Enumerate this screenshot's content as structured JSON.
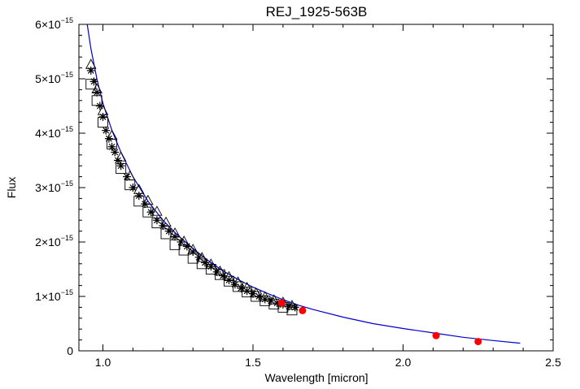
{
  "chart_data": {
    "type": "scatter",
    "title": "REJ_1925-563B",
    "xlabel": "Wavelength [micron]",
    "ylabel": "Flux",
    "xlim": [
      0.92,
      2.5
    ],
    "ylim": [
      0,
      6e-15
    ],
    "x_ticks": [
      {
        "value": 1.0,
        "label": "1.0"
      },
      {
        "value": 1.5,
        "label": "1.5"
      },
      {
        "value": 2.0,
        "label": "2.0"
      },
      {
        "value": 2.5,
        "label": "2.5"
      }
    ],
    "y_ticks": [
      {
        "value": 0,
        "mantissa": "0",
        "exponent": ""
      },
      {
        "value": 1e-15,
        "mantissa": "1×10",
        "exponent": "−15"
      },
      {
        "value": 2e-15,
        "mantissa": "2×10",
        "exponent": "−15"
      },
      {
        "value": 3e-15,
        "mantissa": "3×10",
        "exponent": "−15"
      },
      {
        "value": 4e-15,
        "mantissa": "4×10",
        "exponent": "−15"
      },
      {
        "value": 5e-15,
        "mantissa": "5×10",
        "exponent": "−15"
      },
      {
        "value": 6e-15,
        "mantissa": "6×10",
        "exponent": "−15"
      }
    ],
    "grid": false,
    "series": [
      {
        "marker": "asterisk",
        "color": "#000000",
        "x": [
          0.96,
          0.97,
          0.98,
          0.99,
          1.0,
          1.01,
          1.02,
          1.03,
          1.04,
          1.05,
          1.06,
          1.08,
          1.1,
          1.12,
          1.14,
          1.16,
          1.18,
          1.2,
          1.22,
          1.24,
          1.26,
          1.28,
          1.3,
          1.32,
          1.34,
          1.36,
          1.38,
          1.4,
          1.42,
          1.44,
          1.46,
          1.48,
          1.5,
          1.52,
          1.54,
          1.56,
          1.58,
          1.6,
          1.62,
          1.64
        ],
        "y": [
          5.15e-15,
          4.95e-15,
          4.75e-15,
          4.5e-15,
          4.3e-15,
          4.05e-15,
          3.9e-15,
          3.75e-15,
          3.65e-15,
          3.5e-15,
          3.4e-15,
          3.2e-15,
          3e-15,
          2.85e-15,
          2.7e-15,
          2.55e-15,
          2.4e-15,
          2.3e-15,
          2.2e-15,
          2.1e-15,
          2e-15,
          1.92e-15,
          1.82e-15,
          1.72e-15,
          1.62e-15,
          1.55e-15,
          1.45e-15,
          1.38e-15,
          1.3e-15,
          1.22e-15,
          1.15e-15,
          1.1e-15,
          1.05e-15,
          1e-15,
          9.5e-16,
          9.2e-16,
          8.8e-16,
          8.5e-16,
          8.2e-16,
          8e-16
        ]
      },
      {
        "marker": "square",
        "color": "#000000",
        "x": [
          0.96,
          0.98,
          1.0,
          1.03,
          1.06,
          1.09,
          1.12,
          1.15,
          1.18,
          1.21,
          1.24,
          1.27,
          1.3,
          1.33,
          1.36,
          1.39,
          1.42,
          1.45,
          1.48,
          1.51,
          1.54,
          1.57,
          1.6,
          1.63
        ],
        "y": [
          4.9e-15,
          4.6e-15,
          4.2e-15,
          3.8e-15,
          3.35e-15,
          3.05e-15,
          2.75e-15,
          2.55e-15,
          2.35e-15,
          2.15e-15,
          1.95e-15,
          1.85e-15,
          1.7e-15,
          1.6e-15,
          1.5e-15,
          1.4e-15,
          1.28e-15,
          1.18e-15,
          1.08e-15,
          1e-15,
          9.2e-16,
          8.6e-16,
          8e-16,
          7.5e-16
        ]
      },
      {
        "marker": "triangle",
        "color": "#000000",
        "x": [
          0.96,
          0.98,
          1.0,
          1.03,
          1.06,
          1.09,
          1.12,
          1.15,
          1.18,
          1.21,
          1.24,
          1.27,
          1.3,
          1.33,
          1.36,
          1.39,
          1.42,
          1.45,
          1.48,
          1.51,
          1.54,
          1.57,
          1.6,
          1.63
        ],
        "y": [
          5.25e-15,
          4.8e-15,
          4.4e-15,
          3.95e-15,
          3.55e-15,
          3.2e-15,
          2.95e-15,
          2.75e-15,
          2.55e-15,
          2.35e-15,
          2.15e-15,
          2e-15,
          1.85e-15,
          1.7e-15,
          1.58e-15,
          1.45e-15,
          1.35e-15,
          1.25e-15,
          1.15e-15,
          1.05e-15,
          9.8e-16,
          9.2e-16,
          8.8e-16,
          8.2e-16
        ]
      },
      {
        "marker": "dot",
        "color": "#ff0000",
        "x": [
          1.595,
          1.665,
          2.11,
          2.25
        ],
        "y": [
          8.8e-16,
          7.4e-16,
          2.8e-16,
          1.7e-16
        ]
      }
    ],
    "model_curve": {
      "color": "#0000cc",
      "x": [
        0.945,
        0.96,
        0.98,
        1.0,
        1.03,
        1.06,
        1.1,
        1.15,
        1.2,
        1.25,
        1.3,
        1.35,
        1.4,
        1.45,
        1.5,
        1.55,
        1.6,
        1.65,
        1.7,
        1.8,
        1.9,
        2.0,
        2.1,
        2.2,
        2.3,
        2.39
      ],
      "y": [
        6.1e-15,
        5.55e-15,
        5e-15,
        4.55e-15,
        4.05e-15,
        3.65e-15,
        3.2e-15,
        2.75e-15,
        2.4e-15,
        2.12e-15,
        1.88e-15,
        1.66e-15,
        1.47e-15,
        1.31e-15,
        1.17e-15,
        1.05e-15,
        9.4e-16,
        8.4e-16,
        7.6e-16,
        6.2e-16,
        5e-16,
        4.1e-16,
        3.3e-16,
        2.5e-16,
        1.9e-16,
        1.4e-16
      ]
    }
  }
}
